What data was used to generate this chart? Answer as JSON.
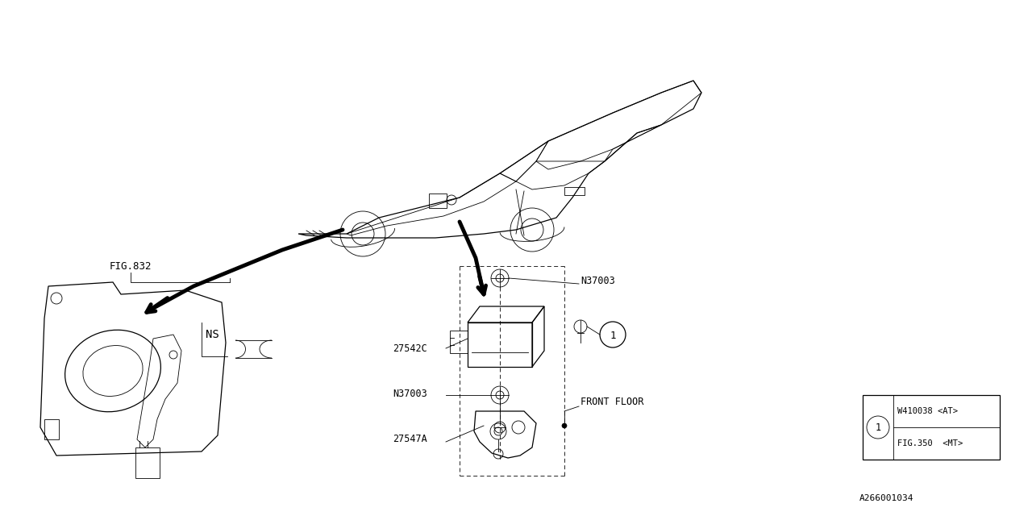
{
  "bg_color": "#FFFFFF",
  "line_color": "#000000",
  "fig_size": [
    12.8,
    6.4
  ],
  "dpi": 100,
  "fig_ref_label": "FIG.832",
  "ns_label": "NS",
  "label_27542C": "27542C",
  "label_N37003_top": "N37003",
  "label_N37003_bot": "N37003",
  "label_27547A": "27547A",
  "label_front_floor": "FRONT FLOOR",
  "legend_row1": "W410038 <AT>",
  "legend_row2": "FIG.350  <MT>",
  "legend_circle": "1",
  "diagram_id": "A266001034",
  "lw_thin": 0.6,
  "lw_med": 0.9,
  "lw_thick": 3.5,
  "font_size_label": 8.5,
  "font_size_legend": 7.5,
  "font_size_id": 8
}
